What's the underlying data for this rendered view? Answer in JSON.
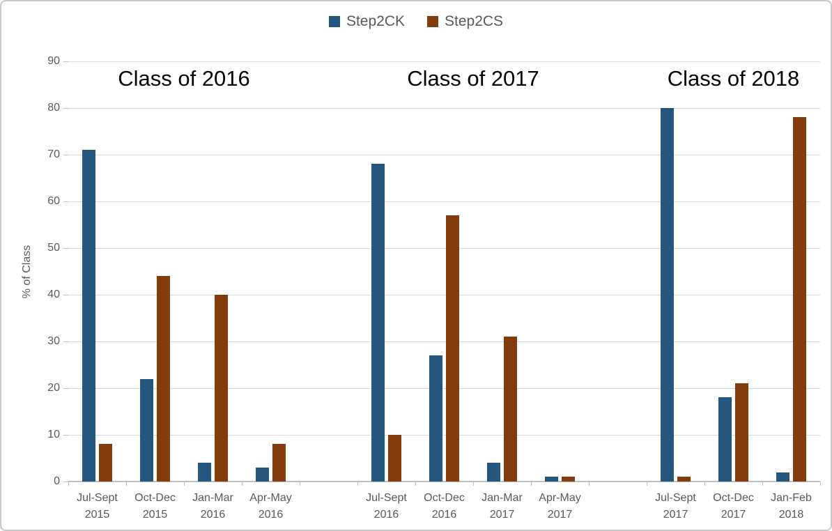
{
  "chart_data": {
    "type": "bar",
    "title": "",
    "ylabel": "% of Class",
    "xlabel": "",
    "ylim": [
      0,
      90
    ],
    "ytick_step": 10,
    "grid": true,
    "legend_position": "top",
    "series_names": [
      "Step2CK",
      "Step2CS"
    ],
    "series_colors": [
      "#24567E",
      "#843C0C"
    ],
    "groups": [
      {
        "title": "Class of 2016",
        "categories": [
          {
            "line1": "Jul-Sept",
            "line2": "2015"
          },
          {
            "line1": "Oct-Dec",
            "line2": "2015"
          },
          {
            "line1": "Jan-Mar",
            "line2": "2016"
          },
          {
            "line1": "Apr-May",
            "line2": "2016"
          }
        ],
        "series": [
          {
            "name": "Step2CK",
            "values": [
              71,
              22,
              4,
              3
            ]
          },
          {
            "name": "Step2CS",
            "values": [
              8,
              44,
              40,
              8
            ]
          }
        ]
      },
      {
        "title": "Class of 2017",
        "categories": [
          {
            "line1": "Jul-Sept",
            "line2": "2016"
          },
          {
            "line1": "Oct-Dec",
            "line2": "2016"
          },
          {
            "line1": "Jan-Mar",
            "line2": "2017"
          },
          {
            "line1": "Apr-May",
            "line2": "2017"
          }
        ],
        "series": [
          {
            "name": "Step2CK",
            "values": [
              68,
              27,
              4,
              1
            ]
          },
          {
            "name": "Step2CS",
            "values": [
              10,
              57,
              31,
              1
            ]
          }
        ]
      },
      {
        "title": "Class of 2018",
        "categories": [
          {
            "line1": "Jul-Sept",
            "line2": "2017"
          },
          {
            "line1": "Oct-Dec",
            "line2": "2017"
          },
          {
            "line1": "Jan-Feb",
            "line2": "2018"
          }
        ],
        "series": [
          {
            "name": "Step2CK",
            "values": [
              80,
              18,
              2
            ]
          },
          {
            "name": "Step2CS",
            "values": [
              1,
              21,
              78
            ]
          }
        ]
      }
    ],
    "colors": {
      "step2ck": "#24567E",
      "step2cs": "#843C0C",
      "axis_text": "#595959",
      "gridline": "#D9D9D9",
      "axis_line": "#BFBFBF",
      "group_title": "#000000",
      "background": "#FFFFFF"
    }
  }
}
